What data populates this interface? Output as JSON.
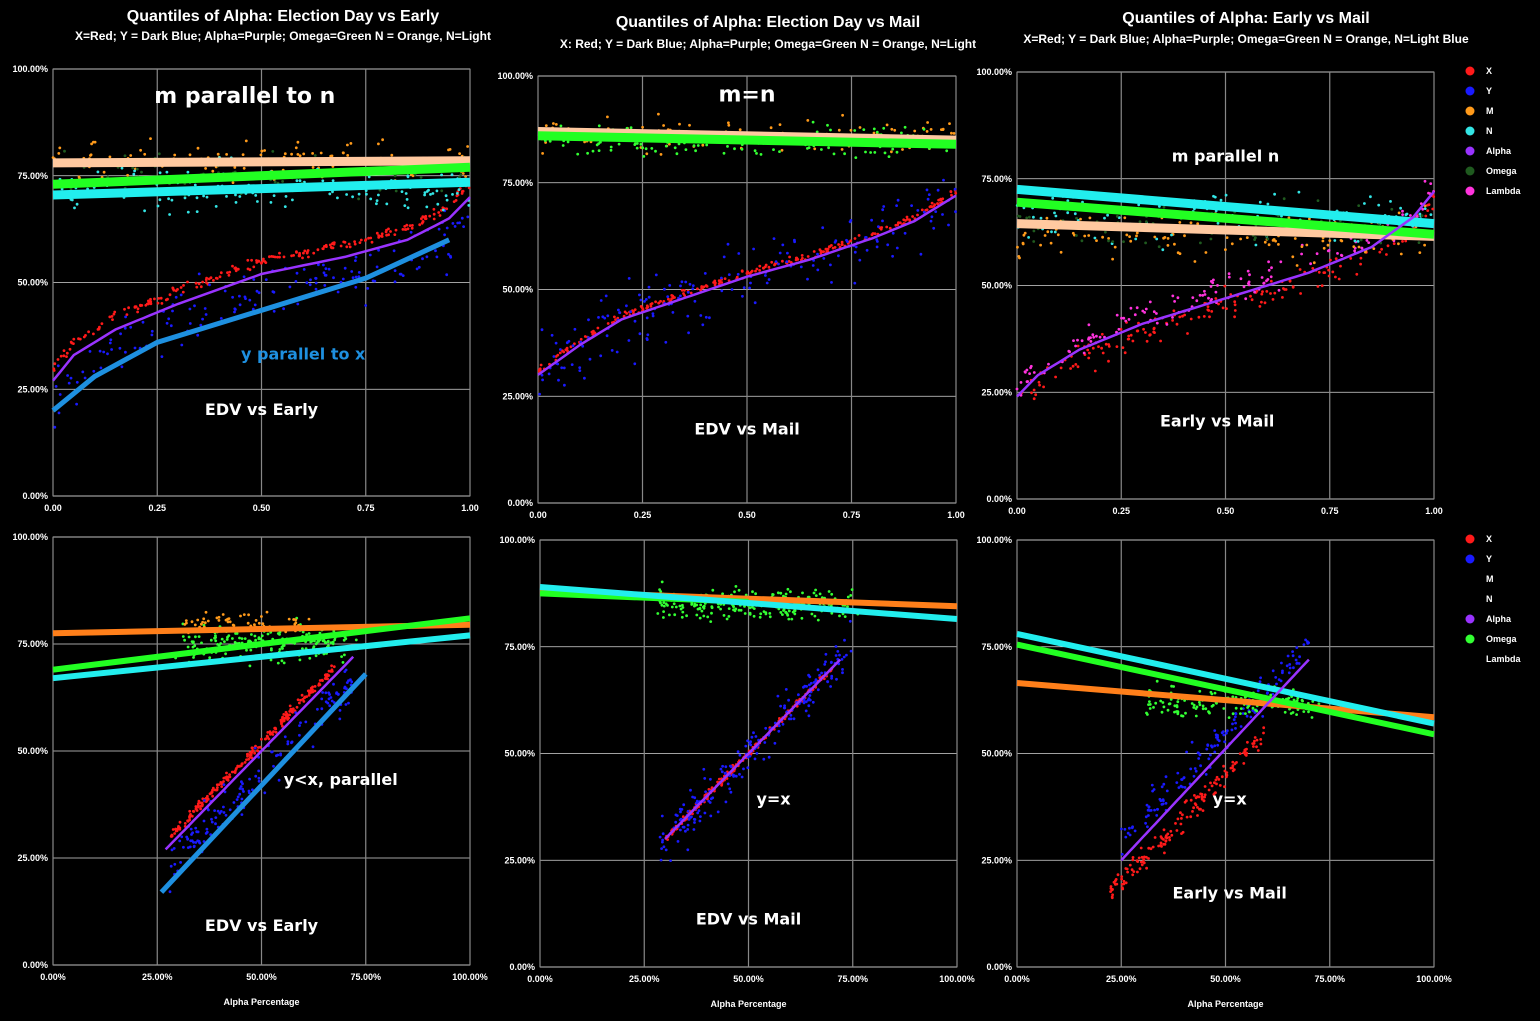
{
  "colors": {
    "X": "#ff1a1a",
    "Y": "#1a1aff",
    "M": "#ff9a1a",
    "N": "#33e5e5",
    "Alpha": "#9933ff",
    "Omega": "#1f5a1f",
    "Lambda": "#ff33dd",
    "line_M_top": "#ffc9a0",
    "line_M_bottom": "#ff7f1a",
    "line_N": "#22eeee",
    "line_Omega": "#22ff22",
    "line_Y": "#1e90e0",
    "line_Alpha": "#9933ff",
    "annotation_top": "#ffffff",
    "annotation_y": "#1e90e0",
    "grid": "#888888",
    "frame": "#777777",
    "omega_bottom_points": "#33ff33"
  },
  "legend_top": [
    {
      "label": "X",
      "color_key": "X"
    },
    {
      "label": "Y",
      "color_key": "Y"
    },
    {
      "label": "M",
      "color_key": "M"
    },
    {
      "label": "N",
      "color_key": "N"
    },
    {
      "label": "Alpha",
      "color_key": "Alpha"
    },
    {
      "label": "Omega",
      "color_key": "Omega"
    },
    {
      "label": "Lambda",
      "color_key": "Lambda"
    }
  ],
  "legend_bottom": [
    {
      "label": "X",
      "color_key": "X"
    },
    {
      "label": "Y",
      "color_key": "Y"
    },
    {
      "label": "M",
      "color_key": null
    },
    {
      "label": "N",
      "color_key": null
    },
    {
      "label": "Alpha",
      "color_key": "Alpha"
    },
    {
      "label": "Omega",
      "color_key": "omega_bottom_points"
    },
    {
      "label": "Lambda",
      "color_key": null
    }
  ],
  "chart_data": [
    {
      "id": "top-left",
      "type": "scatter",
      "title": "Quantiles of Alpha:  Election Day vs Early",
      "subtitle": "X=Red; Y = Dark Blue; Alpha=Purple; Omega=Green N = Orange, N=Light",
      "xlim": [
        0,
        1
      ],
      "ylim": [
        0,
        1
      ],
      "x_ticks": [
        "0.00",
        "0.25",
        "0.50",
        "0.75",
        "1.00"
      ],
      "y_ticks": [
        "0.00%",
        "25.00%",
        "50.00%",
        "75.00%",
        "100.00%"
      ],
      "xlabel": "",
      "annotations": [
        {
          "text": "m parallel to n",
          "x": 0.46,
          "y": 0.92,
          "size": 22,
          "color_key": "annotation_top"
        },
        {
          "text": "y parallel to x",
          "x": 0.6,
          "y": 0.32,
          "size": 16,
          "color_key": "annotation_y"
        },
        {
          "text": "EDV vs Early",
          "x": 0.5,
          "y": 0.19,
          "size": 16,
          "color_key": "annotation_top"
        }
      ],
      "lines": [
        {
          "series": "M",
          "color_key": "line_M_top",
          "width": 9,
          "from": [
            0,
            0.78
          ],
          "to": [
            1,
            0.785
          ]
        },
        {
          "series": "Omega",
          "color_key": "line_Omega",
          "width": 9,
          "from": [
            0,
            0.73
          ],
          "to": [
            1,
            0.77
          ]
        },
        {
          "series": "N",
          "color_key": "line_N",
          "width": 9,
          "from": [
            0,
            0.705
          ],
          "to": [
            1,
            0.735
          ]
        },
        {
          "series": "Y",
          "color_key": "line_Y",
          "width": 5,
          "points": [
            [
              0,
              0.2
            ],
            [
              0.1,
              0.28
            ],
            [
              0.25,
              0.36
            ],
            [
              0.5,
              0.435
            ],
            [
              0.75,
              0.51
            ],
            [
              0.95,
              0.6
            ]
          ]
        }
      ],
      "curves": [
        {
          "series": "Alpha",
          "color_key": "line_Alpha",
          "points": [
            [
              0,
              0.27
            ],
            [
              0.05,
              0.33
            ],
            [
              0.15,
              0.39
            ],
            [
              0.3,
              0.45
            ],
            [
              0.5,
              0.52
            ],
            [
              0.7,
              0.56
            ],
            [
              0.85,
              0.6
            ],
            [
              0.95,
              0.65
            ],
            [
              1,
              0.7
            ]
          ]
        }
      ],
      "scatter": [
        {
          "series": "X",
          "color_key": "X",
          "model": "curve",
          "ref": "Alpha",
          "dy": 0.03,
          "spread": 0.02,
          "n": 220
        },
        {
          "series": "Y",
          "color_key": "Y",
          "model": "curve",
          "ref": "Alpha",
          "dy": -0.04,
          "spread": 0.12,
          "n": 160
        },
        {
          "series": "M",
          "color_key": "M",
          "model": "band",
          "y": 0.78,
          "spread": 0.08,
          "n": 150
        },
        {
          "series": "N",
          "color_key": "N",
          "model": "band",
          "y": 0.72,
          "spread": 0.1,
          "n": 150
        },
        {
          "series": "Omega",
          "color_key": "Omega",
          "model": "band",
          "y": 0.75,
          "spread": 0.08,
          "n": 80
        }
      ]
    },
    {
      "id": "top-mid",
      "type": "scatter",
      "title": "Quantiles of Alpha:  Election Day vs  Mail",
      "subtitle": "X: Red; Y = Dark Blue; Alpha=Purple; Omega=Green N = Orange, N=Light",
      "xlim": [
        0,
        1
      ],
      "ylim": [
        0,
        1
      ],
      "x_ticks": [
        "0.00",
        "0.25",
        "0.50",
        "0.75",
        "1.00"
      ],
      "y_ticks": [
        "0.00%",
        "25.00%",
        "50.00%",
        "75.00%",
        "100.00%"
      ],
      "xlabel": "",
      "annotations": [
        {
          "text": "m=n",
          "x": 0.5,
          "y": 0.94,
          "size": 22,
          "color_key": "annotation_top"
        },
        {
          "text": "EDV vs Mail",
          "x": 0.5,
          "y": 0.16,
          "size": 16,
          "color_key": "annotation_top"
        }
      ],
      "lines": [
        {
          "series": "M",
          "color_key": "line_M_top",
          "width": 9,
          "from": [
            0,
            0.87
          ],
          "to": [
            1,
            0.85
          ]
        },
        {
          "series": "Omega",
          "color_key": "line_Omega",
          "width": 9,
          "from": [
            0,
            0.86
          ],
          "to": [
            1,
            0.84
          ]
        }
      ],
      "curves": [
        {
          "series": "Alpha",
          "color_key": "line_Alpha",
          "points": [
            [
              0,
              0.3
            ],
            [
              0.1,
              0.37
            ],
            [
              0.2,
              0.43
            ],
            [
              0.35,
              0.48
            ],
            [
              0.5,
              0.53
            ],
            [
              0.65,
              0.57
            ],
            [
              0.8,
              0.62
            ],
            [
              0.9,
              0.66
            ],
            [
              1,
              0.72
            ]
          ]
        }
      ],
      "scatter": [
        {
          "series": "X",
          "color_key": "X",
          "model": "curve",
          "ref": "Alpha",
          "dy": 0.01,
          "spread": 0.015,
          "n": 220
        },
        {
          "series": "Y",
          "color_key": "Y",
          "model": "curve",
          "ref": "Alpha",
          "dy": 0.0,
          "spread": 0.15,
          "n": 180
        },
        {
          "series": "M",
          "color_key": "M",
          "model": "band",
          "y": 0.86,
          "spread": 0.06,
          "n": 150
        },
        {
          "series": "Omega",
          "color_key": "omega_bottom_points",
          "model": "band",
          "y": 0.85,
          "spread": 0.06,
          "n": 160
        }
      ]
    },
    {
      "id": "top-right",
      "type": "scatter",
      "title": "Quantiles of Alpha:  Early vs Mail",
      "subtitle": "X=Red; Y = Dark Blue; Alpha=Purple; Omega=Green N = Orange, N=Light Blue",
      "xlim": [
        0,
        1
      ],
      "ylim": [
        0,
        1
      ],
      "x_ticks": [
        "0.00",
        "0.25",
        "0.50",
        "0.75",
        "1.00"
      ],
      "y_ticks": [
        "0.00%",
        "25.00%",
        "50.00%",
        "75.00%",
        "100.00%"
      ],
      "xlabel": "",
      "annotations": [
        {
          "text": "m parallel n",
          "x": 0.5,
          "y": 0.79,
          "size": 16,
          "color_key": "annotation_top"
        },
        {
          "text": "Early vs Mail",
          "x": 0.48,
          "y": 0.17,
          "size": 16,
          "color_key": "annotation_top"
        }
      ],
      "lines": [
        {
          "series": "M",
          "color_key": "line_M_top",
          "width": 9,
          "from": [
            0,
            0.645
          ],
          "to": [
            1,
            0.615
          ]
        },
        {
          "series": "Omega",
          "color_key": "line_Omega",
          "width": 9,
          "from": [
            0,
            0.695
          ],
          "to": [
            1,
            0.62
          ]
        },
        {
          "series": "N",
          "color_key": "line_N",
          "width": 9,
          "from": [
            0,
            0.725
          ],
          "to": [
            1,
            0.645
          ]
        }
      ],
      "curves": [
        {
          "series": "Alpha",
          "color_key": "line_Alpha",
          "points": [
            [
              0,
              0.24
            ],
            [
              0.05,
              0.29
            ],
            [
              0.15,
              0.35
            ],
            [
              0.3,
              0.41
            ],
            [
              0.5,
              0.47
            ],
            [
              0.7,
              0.53
            ],
            [
              0.85,
              0.59
            ],
            [
              0.95,
              0.66
            ],
            [
              1,
              0.72
            ]
          ]
        }
      ],
      "scatter": [
        {
          "series": "X",
          "color_key": "X",
          "model": "curve",
          "ref": "Alpha",
          "dy": -0.02,
          "spread": 0.06,
          "n": 170
        },
        {
          "series": "Lambda",
          "color_key": "Lambda",
          "model": "curve",
          "ref": "Alpha",
          "dy": 0.02,
          "spread": 0.06,
          "n": 150
        },
        {
          "series": "M",
          "color_key": "M",
          "model": "band",
          "y": 0.62,
          "spread": 0.1,
          "n": 140
        },
        {
          "series": "N",
          "color_key": "N",
          "model": "band",
          "y": 0.66,
          "spread": 0.1,
          "n": 140
        },
        {
          "series": "Omega",
          "color_key": "Omega",
          "model": "band",
          "y": 0.64,
          "spread": 0.08,
          "n": 80
        }
      ]
    },
    {
      "id": "bottom-left",
      "type": "scatter",
      "title": "",
      "subtitle": "",
      "xlim": [
        0,
        1
      ],
      "ylim": [
        0,
        1
      ],
      "x_ticks": [
        "0.00%",
        "25.00%",
        "50.00%",
        "75.00%",
        "100.00%"
      ],
      "y_ticks": [
        "0.00%",
        "25.00%",
        "50.00%",
        "75.00%",
        "100.00%"
      ],
      "xlabel": "Alpha Percentage",
      "annotations": [
        {
          "text": "y<x, parallel",
          "x": 0.69,
          "y": 0.42,
          "size": 16,
          "color_key": "annotation_top"
        },
        {
          "text": "EDV vs Early",
          "x": 0.5,
          "y": 0.08,
          "size": 16,
          "color_key": "annotation_top"
        }
      ],
      "lines": [
        {
          "series": "M",
          "color_key": "line_M_bottom",
          "width": 6,
          "from": [
            0,
            0.775
          ],
          "to": [
            1,
            0.795
          ]
        },
        {
          "series": "Omega",
          "color_key": "line_Omega",
          "width": 6,
          "from": [
            0,
            0.69
          ],
          "to": [
            1,
            0.81
          ]
        },
        {
          "series": "N",
          "color_key": "line_N",
          "width": 6,
          "from": [
            0,
            0.67
          ],
          "to": [
            1,
            0.77
          ]
        },
        {
          "series": "Y",
          "color_key": "line_Y",
          "width": 5,
          "from": [
            0.26,
            0.17
          ],
          "to": [
            0.75,
            0.68
          ]
        }
      ],
      "curves": [
        {
          "series": "Alpha",
          "color_key": "line_Alpha",
          "points": [
            [
              0.27,
              0.27
            ],
            [
              0.72,
              0.72
            ]
          ]
        }
      ],
      "scatter": [
        {
          "series": "X",
          "color_key": "X",
          "model": "diag",
          "x0": 0.28,
          "x1": 0.68,
          "dy": 0.02,
          "spread": 0.02,
          "n": 220
        },
        {
          "series": "Y",
          "color_key": "Y",
          "model": "diag",
          "x0": 0.28,
          "x1": 0.72,
          "dy": -0.05,
          "spread": 0.1,
          "n": 160
        },
        {
          "series": "Omega",
          "color_key": "omega_bottom_points",
          "model": "cloud",
          "x0": 0.3,
          "x1": 0.72,
          "y": 0.75,
          "spread": 0.07,
          "n": 200
        },
        {
          "series": "M",
          "color_key": "M",
          "model": "cloud",
          "x0": 0.3,
          "x1": 0.6,
          "y": 0.8,
          "spread": 0.05,
          "n": 60
        }
      ]
    },
    {
      "id": "bottom-mid",
      "type": "scatter",
      "title": "",
      "subtitle": "",
      "xlim": [
        0,
        1
      ],
      "ylim": [
        0,
        1
      ],
      "x_ticks": [
        "0.00%",
        "25.00%",
        "50.00%",
        "75.00%",
        "100.00%"
      ],
      "y_ticks": [
        "0.00%",
        "25.00%",
        "50.00%",
        "75.00%",
        "100.00%"
      ],
      "xlabel": "Alpha Percentage",
      "annotations": [
        {
          "text": "y=x",
          "x": 0.56,
          "y": 0.38,
          "size": 16,
          "color_key": "annotation_top"
        },
        {
          "text": "EDV vs Mail",
          "x": 0.5,
          "y": 0.1,
          "size": 16,
          "color_key": "annotation_top"
        }
      ],
      "lines": [
        {
          "series": "M",
          "color_key": "line_M_bottom",
          "width": 6,
          "from": [
            0,
            0.88
          ],
          "to": [
            1,
            0.845
          ]
        },
        {
          "series": "Omega",
          "color_key": "line_Omega",
          "width": 6,
          "from": [
            0,
            0.875
          ],
          "to": [
            0.5,
            0.855
          ]
        },
        {
          "series": "N",
          "color_key": "line_N",
          "width": 6,
          "from": [
            0,
            0.89
          ],
          "to": [
            1,
            0.815
          ]
        }
      ],
      "curves": [
        {
          "series": "Alpha",
          "color_key": "line_Alpha",
          "points": [
            [
              0.3,
              0.3
            ],
            [
              0.72,
              0.72
            ]
          ]
        }
      ],
      "scatter": [
        {
          "series": "X",
          "color_key": "X",
          "model": "diag",
          "x0": 0.3,
          "x1": 0.7,
          "dy": 0.0,
          "spread": 0.015,
          "n": 200
        },
        {
          "series": "Y",
          "color_key": "Y",
          "model": "diag",
          "x0": 0.28,
          "x1": 0.75,
          "dy": 0.0,
          "spread": 0.1,
          "n": 200
        },
        {
          "series": "Omega",
          "color_key": "omega_bottom_points",
          "model": "cloud",
          "x0": 0.28,
          "x1": 0.75,
          "y": 0.85,
          "spread": 0.06,
          "n": 260
        }
      ]
    },
    {
      "id": "bottom-right",
      "type": "scatter",
      "title": "",
      "subtitle": "",
      "xlim": [
        0,
        1
      ],
      "ylim": [
        0,
        1
      ],
      "x_ticks": [
        "0.00%",
        "25.00%",
        "50.00%",
        "75.00%",
        "100.00%"
      ],
      "y_ticks": [
        "0.00%",
        "25.00%",
        "50.00%",
        "75.00%",
        "100.00%"
      ],
      "xlabel": "Alpha Percentage",
      "annotations": [
        {
          "text": "y=x",
          "x": 0.51,
          "y": 0.38,
          "size": 16,
          "color_key": "annotation_top"
        },
        {
          "text": "Early vs Mail",
          "x": 0.51,
          "y": 0.16,
          "size": 16,
          "color_key": "annotation_top"
        }
      ],
      "lines": [
        {
          "series": "M",
          "color_key": "line_M_bottom",
          "width": 6,
          "from": [
            0,
            0.665
          ],
          "to": [
            1,
            0.585
          ]
        },
        {
          "series": "Omega",
          "color_key": "line_Omega",
          "width": 6,
          "from": [
            0,
            0.755
          ],
          "to": [
            1,
            0.545
          ]
        },
        {
          "series": "N",
          "color_key": "line_N",
          "width": 6,
          "from": [
            0,
            0.78
          ],
          "to": [
            1,
            0.57
          ]
        }
      ],
      "curves": [
        {
          "series": "Alpha",
          "color_key": "line_Alpha",
          "points": [
            [
              0.25,
              0.25
            ],
            [
              0.7,
              0.72
            ]
          ]
        }
      ],
      "scatter": [
        {
          "series": "X",
          "color_key": "X",
          "model": "diag",
          "x0": 0.22,
          "x1": 0.6,
          "dy": -0.05,
          "spread": 0.05,
          "n": 160
        },
        {
          "series": "Y",
          "color_key": "Y",
          "model": "diag",
          "x0": 0.25,
          "x1": 0.7,
          "dy": 0.05,
          "spread": 0.08,
          "n": 160
        },
        {
          "series": "Omega",
          "color_key": "omega_bottom_points",
          "model": "cloud",
          "x0": 0.3,
          "x1": 0.72,
          "y": 0.62,
          "spread": 0.06,
          "n": 150
        }
      ]
    }
  ]
}
